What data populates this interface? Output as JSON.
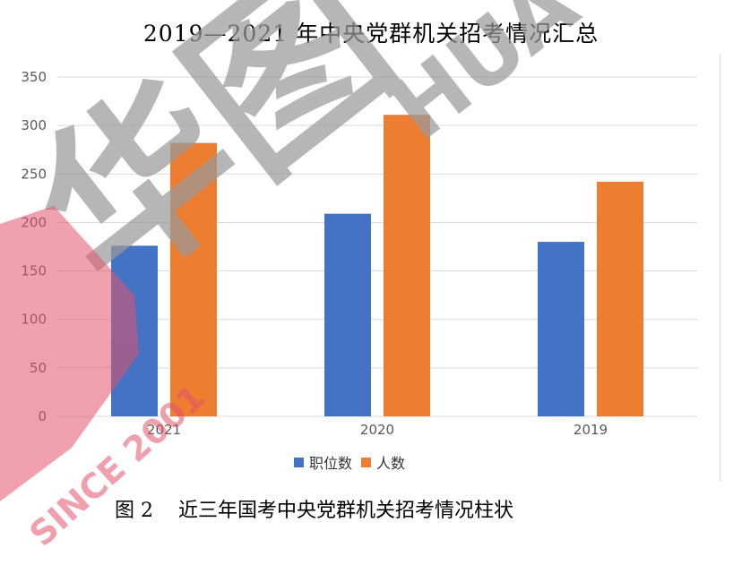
{
  "title": "2019—2021 年中央党群机关招考情况汇总",
  "caption": "图 2    近三年国考中央党群机关招考情况柱状",
  "watermark": {
    "brand_text": "华图",
    "latin_text": "HUA",
    "since_text": "SINCE 2001"
  },
  "colors": {
    "series1": "#4472C4",
    "series2": "#ED7D31",
    "grid": "#D9D9D9",
    "watermark_gray": "#9a9a9a",
    "watermark_red": "#e2536a"
  },
  "chart_data": {
    "type": "bar",
    "title": "2019—2021 年中央党群机关招考情况汇总",
    "categories": [
      "2021",
      "2020",
      "2019"
    ],
    "series": [
      {
        "name": "职位数",
        "values": [
          176,
          209,
          180
        ],
        "color": "#4472C4"
      },
      {
        "name": "人数",
        "values": [
          282,
          311,
          242
        ],
        "color": "#ED7D31"
      }
    ],
    "ylim": [
      0,
      350
    ],
    "yticks": [
      "0",
      "50",
      "100",
      "150",
      "200",
      "250",
      "300",
      "350"
    ],
    "grid": true,
    "legend_position": "bottom"
  }
}
